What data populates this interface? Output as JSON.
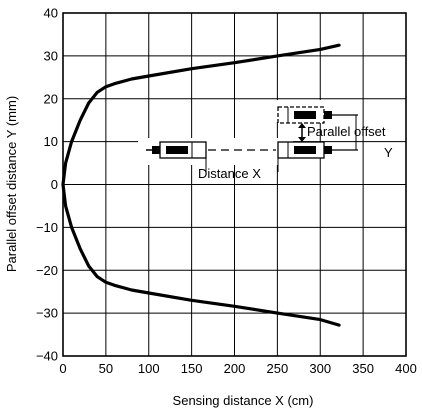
{
  "chart_data": {
    "type": "line",
    "title": "",
    "xlabel": "Sensing distance X (cm)",
    "ylabel": "Parallel offset distance Y (mm)",
    "xlim": [
      0,
      400
    ],
    "ylim": [
      -40,
      40
    ],
    "x_ticks": [
      0,
      50,
      100,
      150,
      200,
      250,
      300,
      350,
      400
    ],
    "y_ticks": [
      40,
      30,
      20,
      10,
      0,
      -10,
      -20,
      -30,
      -40
    ],
    "grid": true,
    "legend": "none",
    "series": [
      {
        "color": "#000000",
        "points": [
          [
            322,
            32.5
          ],
          [
            300,
            31.5
          ],
          [
            250,
            30
          ],
          [
            200,
            28.4
          ],
          [
            150,
            27
          ],
          [
            100,
            25.3
          ],
          [
            80,
            24.6
          ],
          [
            60,
            23.5
          ],
          [
            50,
            22.8
          ],
          [
            40,
            21.5
          ],
          [
            30,
            19
          ],
          [
            20,
            15
          ],
          [
            10,
            10
          ],
          [
            3,
            5
          ],
          [
            0,
            0
          ],
          [
            3,
            -5
          ],
          [
            10,
            -10
          ],
          [
            20,
            -15
          ],
          [
            30,
            -19
          ],
          [
            40,
            -21.5
          ],
          [
            50,
            -22.8
          ],
          [
            60,
            -23.5
          ],
          [
            80,
            -24.6
          ],
          [
            100,
            -25.3
          ],
          [
            150,
            -27
          ],
          [
            200,
            -28.4
          ],
          [
            250,
            -30
          ],
          [
            300,
            -31.5
          ],
          [
            322,
            -32.8
          ]
        ]
      }
    ],
    "annotations": {
      "distance_label": "Distance X",
      "offset_label": "Parallel offset",
      "offset_symbol": "Y"
    }
  }
}
